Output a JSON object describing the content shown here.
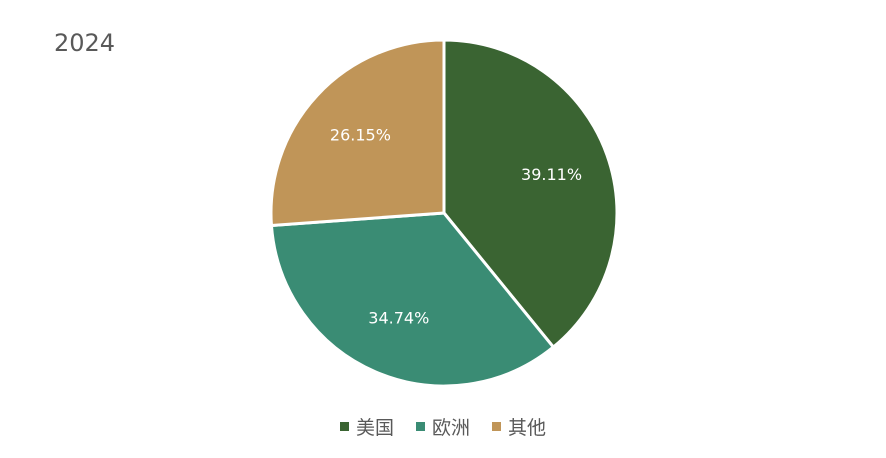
{
  "chart_data": {
    "type": "pie",
    "title": "2024",
    "categories": [
      "美国",
      "欧洲",
      "其他"
    ],
    "values": [
      39.11,
      34.74,
      26.15
    ],
    "data_labels": [
      "39.11%",
      "34.74%",
      "26.15%"
    ],
    "colors": [
      "#3a6432",
      "#3a8c74",
      "#c09558"
    ],
    "start_angle_deg": 0,
    "direction": "clockwise",
    "legend_position": "bottom",
    "label_color": "#ffffff",
    "border_color": "#ffffff"
  }
}
